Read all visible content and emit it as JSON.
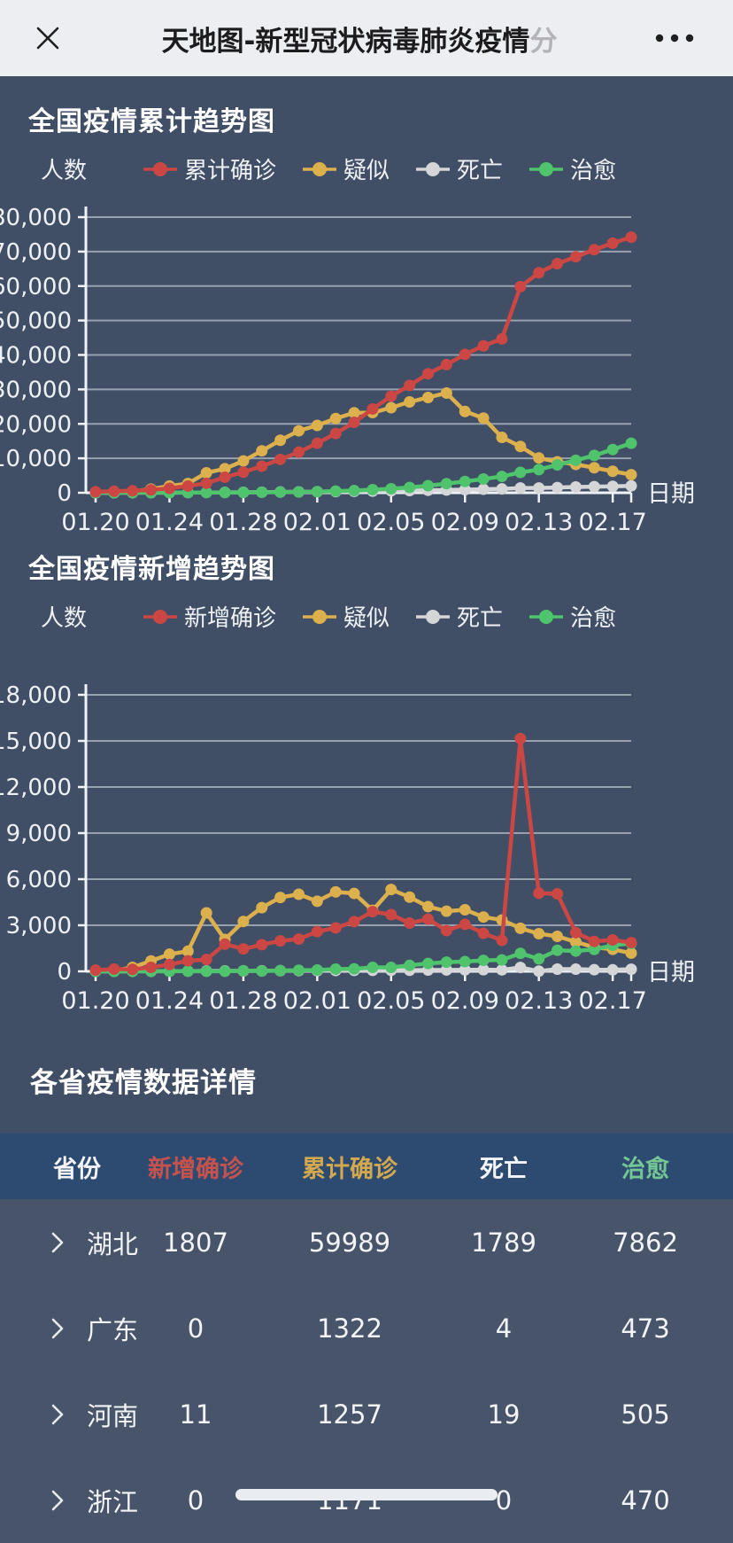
{
  "titlebar": {
    "title_main": "天地图-新型冠状病毒肺炎疫情",
    "title_fade": "分"
  },
  "colors": {
    "confirmed": "#cc4743",
    "suspected": "#ddb04e",
    "death": "#d5d6d8",
    "cured": "#4fc46d",
    "grid_line": "#dfe4ec",
    "axis_text": "#eef1f6",
    "table_header_bg": "#2d4a70",
    "table_new_confirmed": "#c5524c",
    "table_confirmed": "#d2a94e",
    "table_death": "#f2f4f8",
    "table_cured": "#74c693"
  },
  "chart_data": [
    {
      "type": "line",
      "title": "全国疫情累计趋势图",
      "ylabel": "人数",
      "xlabel": "日期",
      "ylim": [
        0,
        80000
      ],
      "ytick_step": 10000,
      "x_label_every": 4,
      "grid": true,
      "legend_position": "top",
      "z_order": [
        2,
        1,
        3,
        0
      ],
      "x": [
        "01.20",
        "01.21",
        "01.22",
        "01.23",
        "01.24",
        "01.25",
        "01.26",
        "01.27",
        "01.28",
        "01.29",
        "01.30",
        "01.31",
        "02.01",
        "02.02",
        "02.03",
        "02.04",
        "02.05",
        "02.06",
        "02.07",
        "02.08",
        "02.09",
        "02.10",
        "02.11",
        "02.12",
        "02.13",
        "02.14",
        "02.15",
        "02.16",
        "02.17",
        "02.18"
      ],
      "series": [
        {
          "name": "累计确诊",
          "color_key": "confirmed",
          "values": [
            291,
            440,
            571,
            830,
            1287,
            1975,
            2744,
            4515,
            5974,
            7711,
            9692,
            11791,
            14380,
            17205,
            20438,
            24324,
            28018,
            31161,
            34546,
            37198,
            40171,
            42638,
            44653,
            59804,
            63851,
            66492,
            68500,
            70548,
            72436,
            74185
          ]
        },
        {
          "name": "疑似",
          "color_key": "suspected",
          "values": [
            54,
            37,
            393,
            1072,
            1965,
            2684,
            5794,
            6973,
            9239,
            12167,
            15238,
            17988,
            19544,
            21558,
            23214,
            23260,
            24702,
            26359,
            27657,
            28942,
            23589,
            21675,
            16067,
            13435,
            10109,
            8969,
            8228,
            7264,
            6242,
            5248
          ]
        },
        {
          "name": "死亡",
          "color_key": "death",
          "values": [
            6,
            9,
            17,
            25,
            41,
            56,
            80,
            106,
            132,
            170,
            213,
            259,
            304,
            361,
            425,
            490,
            563,
            637,
            722,
            811,
            908,
            1016,
            1113,
            1367,
            1380,
            1523,
            1665,
            1770,
            1868,
            2004
          ]
        },
        {
          "name": "治愈",
          "color_key": "cured",
          "values": [
            25,
            25,
            28,
            34,
            38,
            49,
            51,
            60,
            103,
            124,
            171,
            243,
            328,
            475,
            632,
            892,
            1153,
            1540,
            2050,
            2649,
            3281,
            3996,
            4740,
            5911,
            6723,
            8096,
            9419,
            10844,
            12552,
            14376
          ]
        }
      ]
    },
    {
      "type": "line",
      "title": "全国疫情新增趋势图",
      "ylabel": "人数",
      "xlabel": "日期",
      "ylim": [
        0,
        18000
      ],
      "ytick_step": 3000,
      "x_label_every": 4,
      "grid": true,
      "legend_position": "top",
      "z_order": [
        2,
        1,
        3,
        0
      ],
      "x": [
        "01.20",
        "01.21",
        "01.22",
        "01.23",
        "01.24",
        "01.25",
        "01.26",
        "01.27",
        "01.28",
        "01.29",
        "01.30",
        "01.31",
        "02.01",
        "02.02",
        "02.03",
        "02.04",
        "02.05",
        "02.06",
        "02.07",
        "02.08",
        "02.09",
        "02.10",
        "02.11",
        "02.12",
        "02.13",
        "02.14",
        "02.15",
        "02.16",
        "02.17",
        "02.18"
      ],
      "series": [
        {
          "name": "新增确诊",
          "color_key": "confirmed",
          "values": [
            77,
            149,
            131,
            259,
            444,
            688,
            769,
            1771,
            1459,
            1737,
            1982,
            2102,
            2590,
            2829,
            3235,
            3887,
            3694,
            3143,
            3399,
            2656,
            3062,
            2478,
            2015,
            15152,
            5090,
            5050,
            2520,
            1950,
            2048,
            1870
          ]
        },
        {
          "name": "疑似",
          "color_key": "suspected",
          "values": [
            27,
            53,
            257,
            680,
            1118,
            1309,
            3806,
            2077,
            3248,
            4148,
            4812,
            5019,
            4562,
            5173,
            5072,
            3971,
            5328,
            4833,
            4214,
            3916,
            4008,
            3536,
            3342,
            2807,
            2450,
            2277,
            1918,
            1563,
            1432,
            1185
          ]
        },
        {
          "name": "死亡",
          "color_key": "death",
          "values": [
            6,
            3,
            8,
            8,
            16,
            15,
            24,
            26,
            26,
            38,
            43,
            46,
            45,
            57,
            64,
            65,
            73,
            73,
            86,
            89,
            97,
            108,
            97,
            254,
            13,
            143,
            142,
            105,
            98,
            136
          ]
        },
        {
          "name": "治愈",
          "color_key": "cured",
          "values": [
            0,
            0,
            3,
            6,
            4,
            11,
            2,
            9,
            43,
            21,
            47,
            72,
            85,
            147,
            157,
            260,
            261,
            387,
            510,
            599,
            632,
            716,
            744,
            1171,
            812,
            1373,
            1323,
            1425,
            1701,
            1824
          ]
        }
      ]
    }
  ],
  "table": {
    "title": "各省疫情数据详情",
    "columns": [
      {
        "label": "省份",
        "color_key": "table_death"
      },
      {
        "label": "新增确诊",
        "color_key": "table_new_confirmed"
      },
      {
        "label": "累计确诊",
        "color_key": "table_confirmed"
      },
      {
        "label": "死亡",
        "color_key": "table_death"
      },
      {
        "label": "治愈",
        "color_key": "table_cured"
      }
    ],
    "rows": [
      {
        "province": "湖北",
        "new_confirmed": "1807",
        "confirmed": "59989",
        "death": "1789",
        "cured": "7862"
      },
      {
        "province": "广东",
        "new_confirmed": "0",
        "confirmed": "1322",
        "death": "4",
        "cured": "473"
      },
      {
        "province": "河南",
        "new_confirmed": "11",
        "confirmed": "1257",
        "death": "19",
        "cured": "505"
      },
      {
        "province": "浙江",
        "new_confirmed": "0",
        "confirmed": "1171",
        "death": "0",
        "cured": "470"
      }
    ]
  }
}
